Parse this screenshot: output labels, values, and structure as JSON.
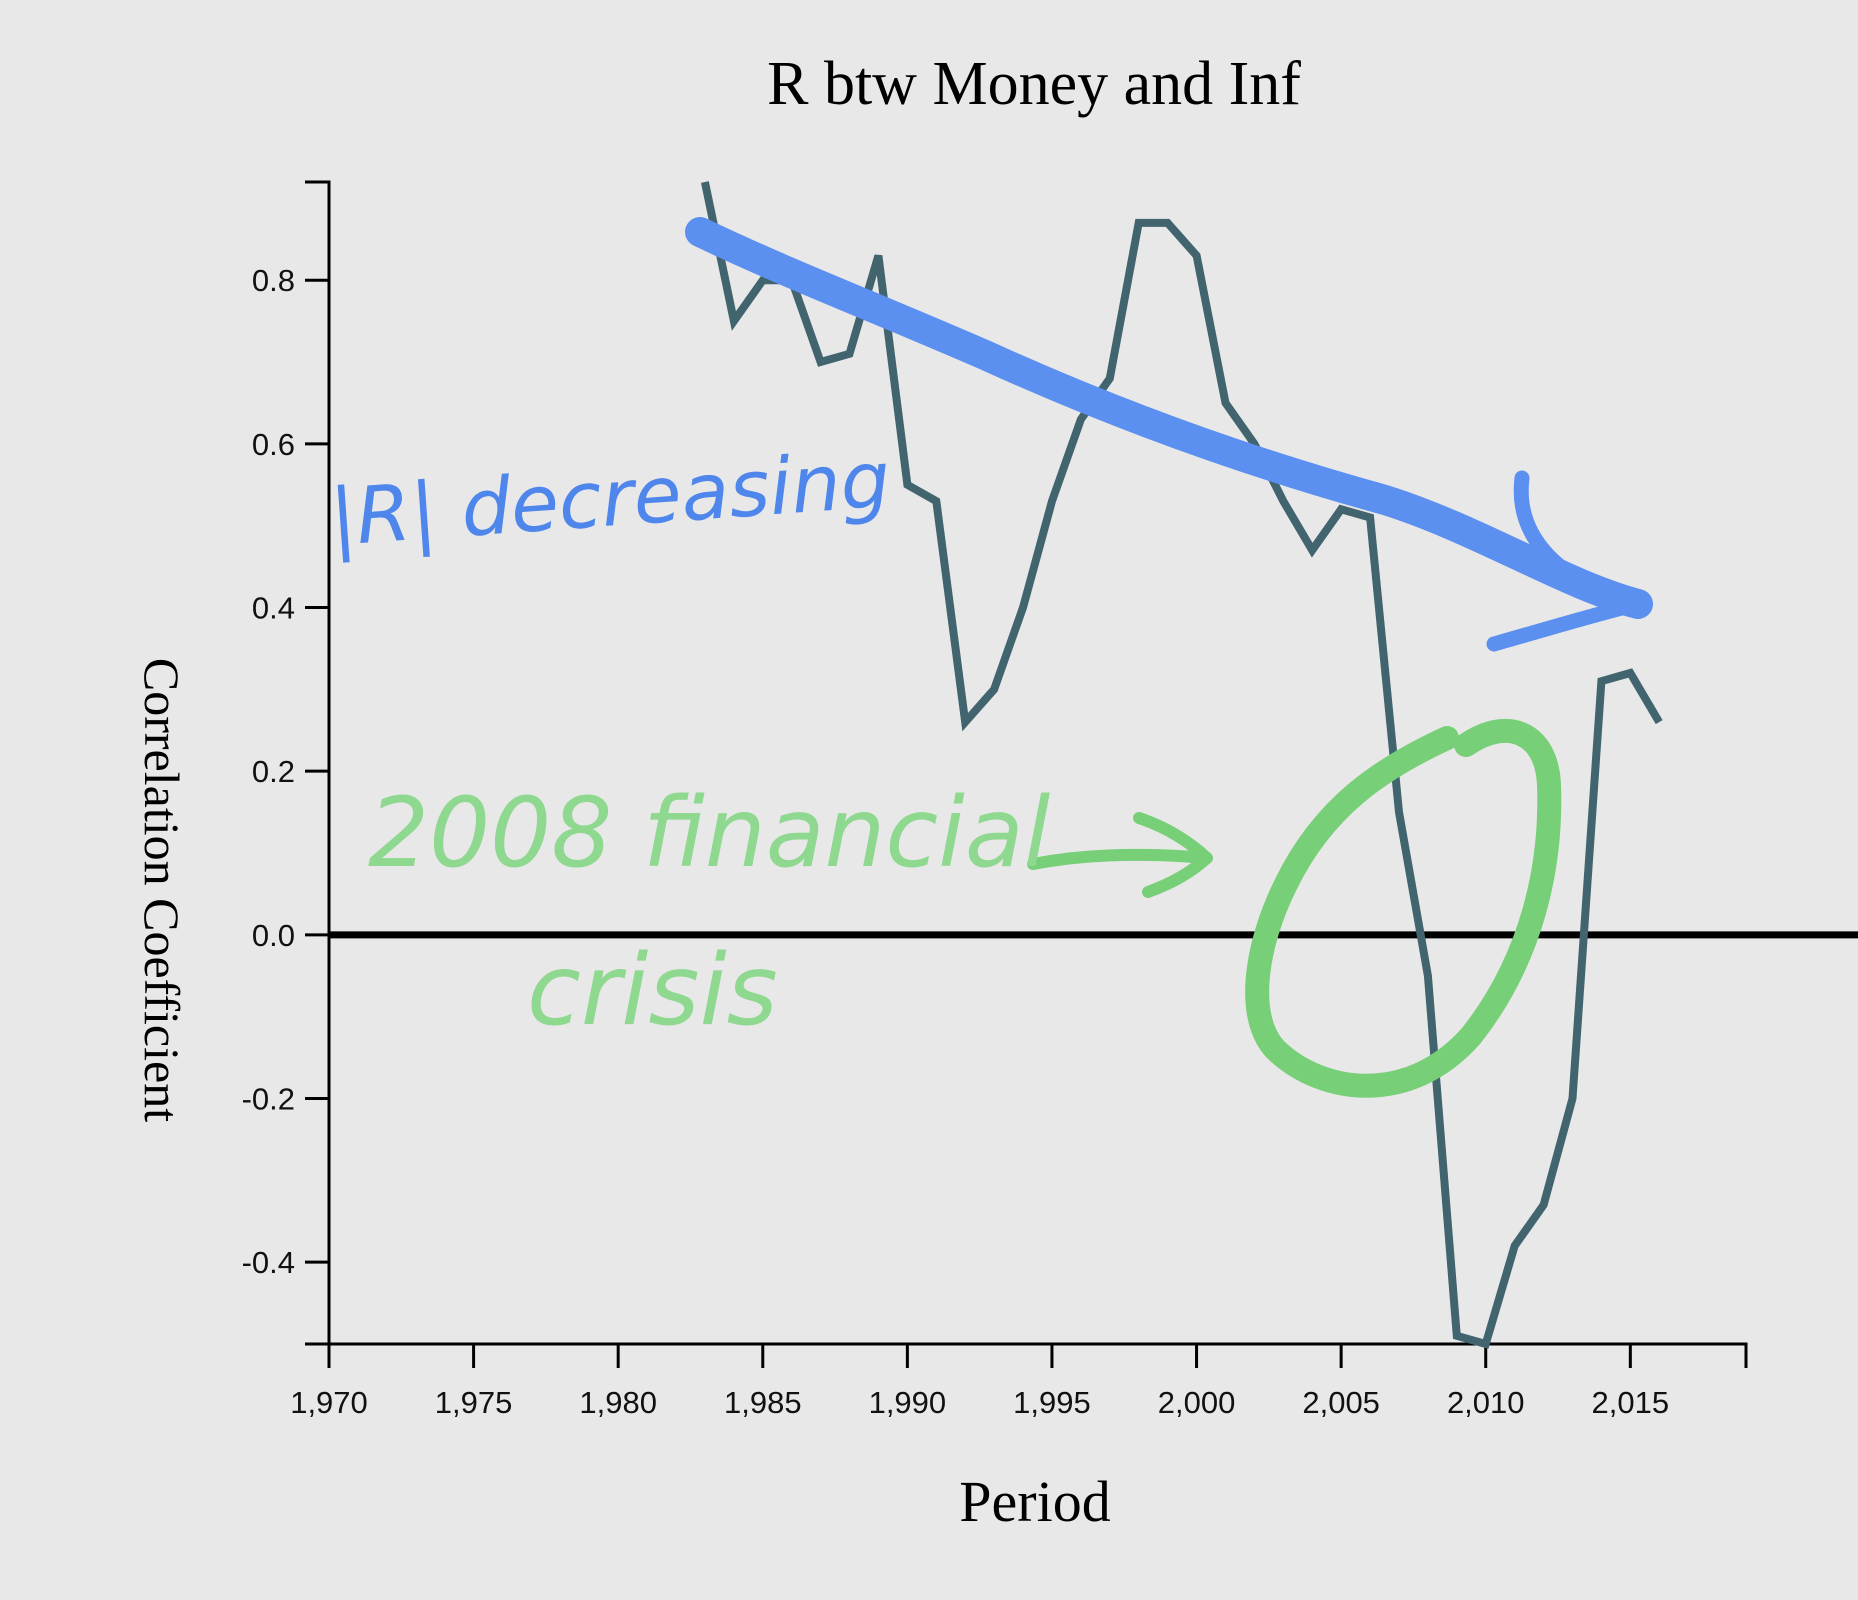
{
  "chart_data": {
    "type": "line",
    "title": "R btw Money and Inf",
    "xlabel": "Period",
    "ylabel": "Correlation Coefficient",
    "xlim": [
      1970,
      2019
    ],
    "ylim": [
      -0.5,
      0.92
    ],
    "x_ticks": [
      1970,
      1975,
      1980,
      1985,
      1990,
      1995,
      2000,
      2005,
      2010,
      2015
    ],
    "x_tick_labels": [
      "1,970",
      "1,975",
      "1,980",
      "1,985",
      "1,990",
      "1,995",
      "2,000",
      "2,005",
      "2,010",
      "2,015"
    ],
    "y_ticks": [
      0.8,
      0.6,
      0.4,
      0.2,
      0.0,
      -0.2,
      -0.4
    ],
    "y_tick_labels": [
      "0.8",
      "0.6",
      "0.4",
      "0.2",
      "0.0",
      "-0.2",
      "-0.4"
    ],
    "grid": false,
    "line_color": "#41646f",
    "series": [
      {
        "x": [
          1983,
          1984,
          1985,
          1986,
          1987,
          1988,
          1989,
          1990,
          1991,
          1992,
          1993,
          1994,
          1995,
          1996,
          1997,
          1998,
          1999,
          2000,
          2001,
          2002,
          2003,
          2004,
          2005,
          2006,
          2007,
          2008,
          2009,
          2010,
          2011,
          2012,
          2013,
          2014,
          2015,
          2016
        ],
        "values": [
          0.92,
          0.75,
          0.8,
          0.8,
          0.7,
          0.71,
          0.83,
          0.55,
          0.53,
          0.26,
          0.3,
          0.4,
          0.53,
          0.63,
          0.68,
          0.87,
          0.87,
          0.83,
          0.65,
          0.6,
          0.53,
          0.47,
          0.52,
          0.51,
          0.15,
          -0.05,
          -0.49,
          -0.5,
          -0.38,
          -0.33,
          -0.2,
          0.31,
          0.32,
          0.26
        ]
      }
    ],
    "reference_line": {
      "y": 0.0,
      "color": "#000000"
    }
  },
  "annotations": {
    "blue_note": "|R| decreasing",
    "green_note_line1": "2008 financial",
    "green_note_line2": "crisis",
    "blue_color": "#5b8ff0",
    "green_color": "#77cf77"
  }
}
